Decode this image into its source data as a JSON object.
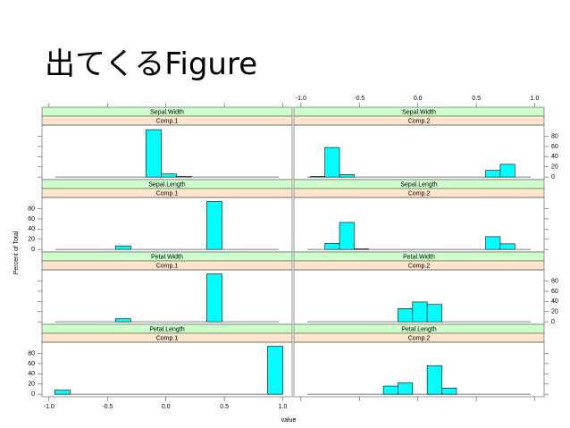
{
  "slide_title": "出てくるFigure",
  "chart_data": {
    "type": "histogram",
    "xlabel": "value",
    "ylabel": "Percent of Total",
    "color": "#00ffff",
    "xlim": [
      -1.06,
      1.08
    ],
    "xticks": [
      {
        "value": -1,
        "label": "-1.0"
      },
      {
        "value": -0.5,
        "label": "-0.5"
      },
      {
        "value": 0,
        "label": "0.0"
      },
      {
        "value": 0.5,
        "label": "0.5"
      },
      {
        "value": 1,
        "label": "1.0"
      }
    ],
    "ylim": [
      -5,
      102
    ],
    "yticks": [
      0,
      20,
      40,
      60,
      80
    ],
    "panels": [
      {
        "strips": [
          "Sepal.Width",
          "Comp.1"
        ],
        "bins": [
          -0.17,
          -0.04,
          0.09,
          0.22
        ],
        "values": [
          93,
          6,
          1
        ]
      },
      {
        "strips": [
          "Sepal.Width",
          "Comp.2"
        ],
        "bins": [
          -0.92,
          -0.795,
          -0.67,
          -0.545,
          -0.42,
          -0.295,
          -0.17,
          -0.045,
          0.08,
          0.205,
          0.33,
          0.455,
          0.58,
          0.705,
          0.83
        ],
        "values": [
          1,
          58,
          5,
          0,
          0,
          0,
          0,
          0,
          0,
          0,
          0,
          0,
          13,
          25
        ]
      },
      {
        "strips": [
          "Sepal.Length",
          "Comp.1"
        ],
        "bins": [
          -0.43,
          -0.3,
          -0.17,
          -0.04,
          0.09,
          0.22,
          0.35,
          0.48
        ],
        "values": [
          7,
          0,
          0,
          0,
          0,
          0,
          94
        ]
      },
      {
        "strips": [
          "Sepal.Length",
          "Comp.2"
        ],
        "bins": [
          -0.795,
          -0.67,
          -0.545,
          -0.42,
          -0.295,
          -0.17,
          -0.045,
          0.08,
          0.205,
          0.33,
          0.455,
          0.58,
          0.705,
          0.83
        ],
        "values": [
          12,
          53,
          1,
          0,
          0,
          0,
          0,
          0,
          0,
          0,
          0,
          25,
          11
        ]
      },
      {
        "strips": [
          "Petal.Width",
          "Comp.1"
        ],
        "bins": [
          -0.43,
          -0.3,
          -0.17,
          -0.04,
          0.09,
          0.22,
          0.35,
          0.48
        ],
        "values": [
          6,
          0,
          0,
          0,
          0,
          0,
          94
        ]
      },
      {
        "strips": [
          "Petal.Width",
          "Comp.2"
        ],
        "bins": [
          -0.17,
          -0.045,
          0.08,
          0.205
        ],
        "values": [
          26,
          39,
          34
        ]
      },
      {
        "strips": [
          "Petal.Length",
          "Comp.1"
        ],
        "bins": [
          -0.95,
          -0.82,
          -0.69,
          -0.56,
          -0.43,
          -0.3,
          -0.17,
          -0.04,
          0.09,
          0.22,
          0.35,
          0.48,
          0.61,
          0.74,
          0.87,
          1.0
        ],
        "values": [
          8,
          0,
          0,
          0,
          0,
          0,
          0,
          0,
          0,
          0,
          0,
          0,
          0,
          0,
          94
        ]
      },
      {
        "strips": [
          "Petal.Length",
          "Comp.2"
        ],
        "bins": [
          -0.295,
          -0.17,
          -0.045,
          0.08,
          0.205,
          0.33
        ],
        "values": [
          16,
          22,
          0,
          56,
          12
        ]
      }
    ]
  }
}
